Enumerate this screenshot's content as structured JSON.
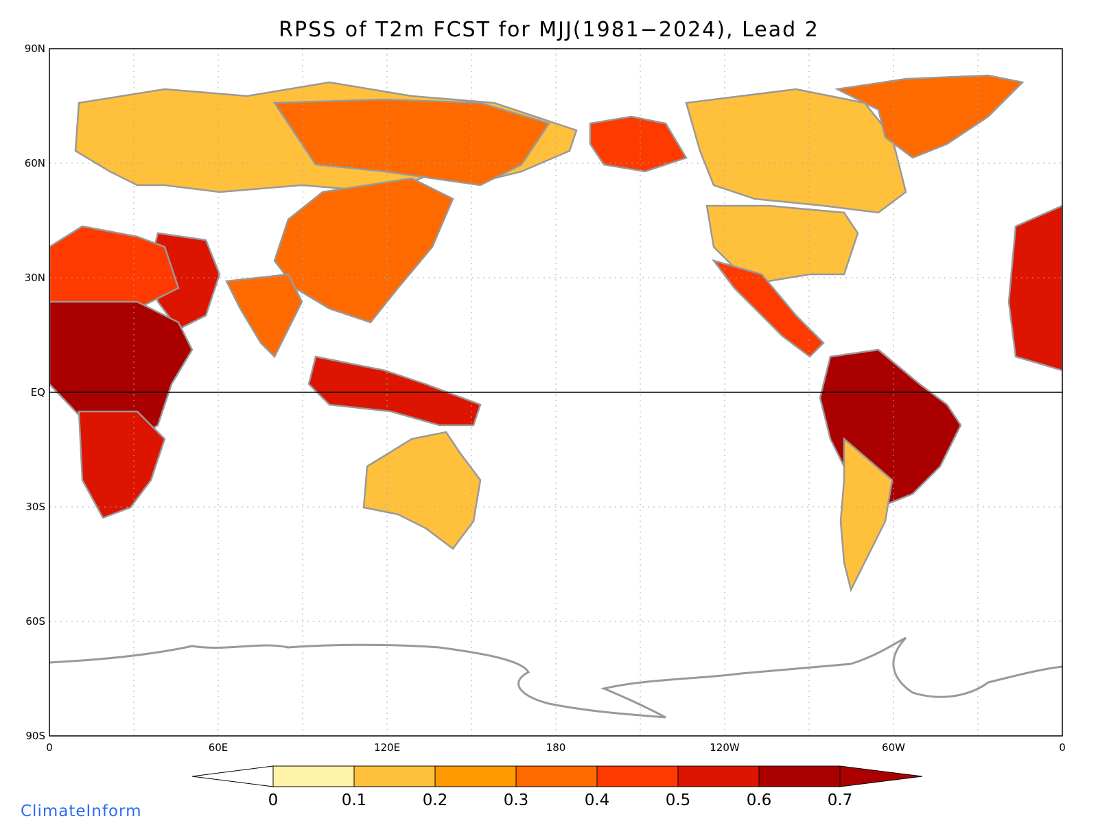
{
  "title": "RPSS of T2m FCST for MJJ(1981−2024), Lead 2",
  "credit": "ClimateInform",
  "chart_data": {
    "type": "heatmap",
    "variable": "RPSS",
    "lon_range": [
      0,
      360
    ],
    "lat_range": [
      -90,
      90
    ],
    "y_ticks": [
      "90N",
      "60N",
      "30N",
      "EQ",
      "30S",
      "60S",
      "90S"
    ],
    "x_ticks": [
      "0",
      "60E",
      "120E",
      "180",
      "120W",
      "60W",
      "0"
    ],
    "grid": true,
    "colorbar": {
      "levels": [
        "0",
        "0.1",
        "0.2",
        "0.3",
        "0.4",
        "0.5",
        "0.6",
        "0.7"
      ],
      "colors": [
        "#ffffff",
        "#fff3a8",
        "#ffc03c",
        "#ff9a00",
        "#ff6a00",
        "#ff3a00",
        "#dc1400",
        "#aa0000"
      ],
      "extend": "both"
    },
    "regions": [
      {
        "name": "Northern Eurasia",
        "value": 0.15
      },
      {
        "name": "Siberia",
        "value": 0.3
      },
      {
        "name": "China",
        "value": 0.35
      },
      {
        "name": "India",
        "value": 0.3
      },
      {
        "name": "Middle East",
        "value": 0.55
      },
      {
        "name": "North Africa",
        "value": 0.45
      },
      {
        "name": "Central Africa",
        "value": 0.6
      },
      {
        "name": "Southern Africa",
        "value": 0.5
      },
      {
        "name": "Maritime Continent",
        "value": 0.55
      },
      {
        "name": "Australia",
        "value": 0.15
      },
      {
        "name": "Alaska",
        "value": 0.4
      },
      {
        "name": "Canada",
        "value": 0.1
      },
      {
        "name": "United States",
        "value": 0.1
      },
      {
        "name": "Mexico",
        "value": 0.45
      },
      {
        "name": "Greenland",
        "value": 0.3
      },
      {
        "name": "Amazon",
        "value": 0.65
      },
      {
        "name": "Southern South America",
        "value": 0.1
      },
      {
        "name": "West Africa (right edge)",
        "value": 0.5
      }
    ]
  }
}
